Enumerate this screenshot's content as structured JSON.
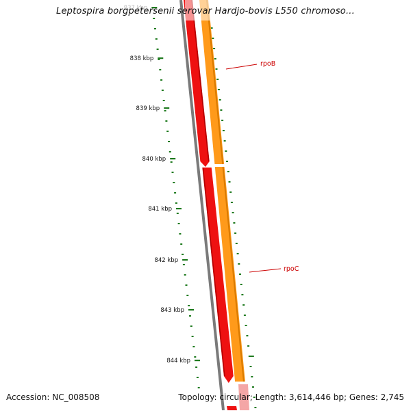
{
  "title": "Leptospira borgpetersenii serovar Hardjo-bovis L550 chromoso...",
  "footer": {
    "accession": "Accession: NC_008508",
    "stats": "Topology: circular; Length: 3,614,446 bp; Genes: 2,745"
  },
  "ticks": [
    {
      "label": "837 kbp"
    },
    {
      "label": "838 kbp"
    },
    {
      "label": "839 kbp"
    },
    {
      "label": "840 kbp"
    },
    {
      "label": "841 kbp"
    },
    {
      "label": "842 kbp"
    },
    {
      "label": "843 kbp"
    },
    {
      "label": "844 kbp"
    }
  ],
  "genes": [
    {
      "name": "rpoB",
      "label": "rpoB"
    },
    {
      "name": "rpoC",
      "label": "rpoC"
    }
  ],
  "colors": {
    "backbone": "#7a7a7a",
    "cds_forward": "#ee1111",
    "cds_forward_dark": "#b00000",
    "gene_orange": "#ff9a1a",
    "gene_orange_dark": "#d97a00",
    "tick": "#1e7a1e",
    "gc_skew": "#1e7a1e",
    "gene_label": "#cc0000",
    "leader": "#cc0000"
  }
}
